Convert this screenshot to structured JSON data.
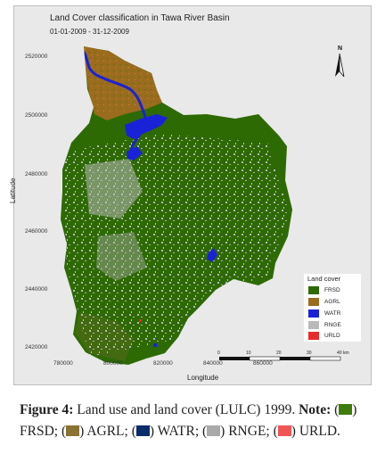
{
  "map": {
    "title": "Land Cover classification in Tawa River Basin",
    "date_range": "01-01-2009 - 31-12-2009",
    "y_axis_label": "Latitude",
    "x_axis_label": "Longitude",
    "y_ticks": [
      "2520000",
      "2500000",
      "2480000",
      "2460000",
      "2440000",
      "2420000"
    ],
    "x_ticks": [
      "780000",
      "800000",
      "820000",
      "840000",
      "860000"
    ],
    "north_label": "N",
    "scale_labels": [
      "0",
      "10",
      "20",
      "30",
      "40 km"
    ],
    "legend": {
      "title": "Land cover",
      "items": [
        {
          "label": "FRSD",
          "color": "#2d6a04"
        },
        {
          "label": "AGRL",
          "color": "#9b6b1e"
        },
        {
          "label": "WATR",
          "color": "#1a22d8"
        },
        {
          "label": "RNGE",
          "color": "#b9b9b9"
        },
        {
          "label": "URLD",
          "color": "#e82a2a"
        }
      ]
    }
  },
  "caption": {
    "figure_label": "Figure 4:",
    "text": " Land use and land cover (LULC) 1999. ",
    "note_label": "Note:",
    "items": [
      {
        "label": "FRSD",
        "color": "#3e7d0c"
      },
      {
        "label": "AGRL",
        "color": "#8a7332"
      },
      {
        "label": "WATR",
        "color": "#0b2c6b"
      },
      {
        "label": "RNGE",
        "color": "#a9a9a9"
      },
      {
        "label": "URLD",
        "color": "#f05555"
      }
    ]
  }
}
